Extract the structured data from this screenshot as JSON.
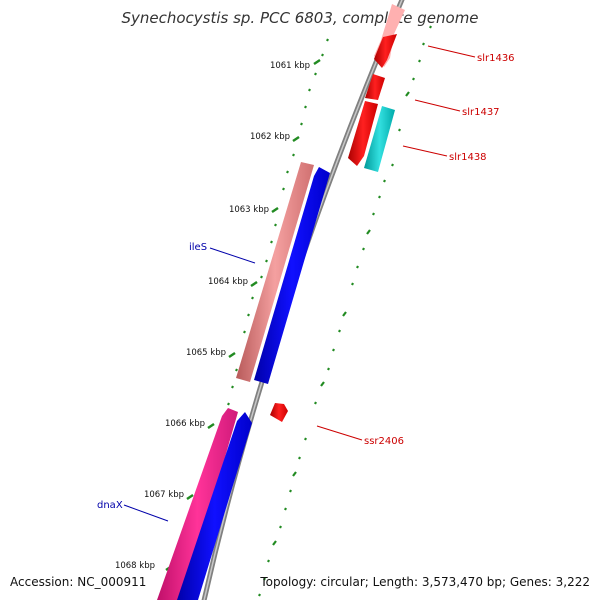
{
  "title": "Synechocystis sp. PCC 6803, complete genome",
  "footer": {
    "accession": "Accession: NC_000911",
    "topology": "Topology: circular; Length: 3,573,470 bp; Genes: 3,222"
  },
  "ticks": [
    "1061 kbp",
    "1062 kbp",
    "1063 kbp",
    "1064 kbp",
    "1065 kbp",
    "1066 kbp",
    "1067 kbp",
    "1068 kbp"
  ],
  "genes": {
    "slr1436": "slr1436",
    "slr1437": "slr1437",
    "slr1438": "slr1438",
    "ssr2406": "ssr2406",
    "ileS": "ileS",
    "dnaX": "dnaX"
  },
  "colors": {
    "forward_cds": "#ff0000",
    "reverse_cds": "#0000ff",
    "trna": "#ff1493",
    "rrna_light": "#f08080",
    "misc_feature": "#00cccc",
    "tick_green": "#228b22",
    "backbone": "#808080"
  }
}
